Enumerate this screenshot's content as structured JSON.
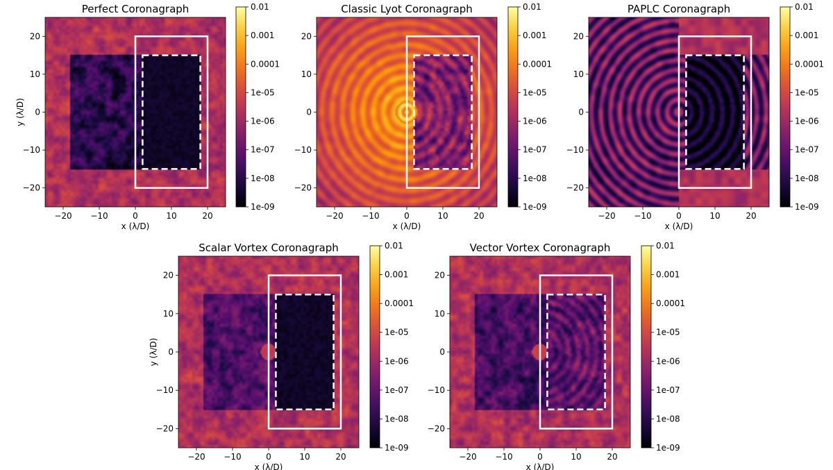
{
  "chart_data": [
    {
      "type": "heatmap",
      "title": "Perfect Coronagraph",
      "xlabel": "x (λ/D)",
      "ylabel": "y (λ/D)",
      "xlim": [
        -25,
        25
      ],
      "ylim": [
        -25,
        25
      ],
      "xticks": [
        -20,
        -10,
        0,
        10,
        20
      ],
      "yticks": [
        -20,
        -10,
        0,
        10,
        20
      ],
      "colorbar": {
        "scale": "log",
        "range": [
          1e-09,
          0.01
        ],
        "colormap": "inferno",
        "ticks": [
          "0.01",
          "0.001",
          "0.0001",
          "1e-05",
          "1e-06",
          "1e-07",
          "1e-08",
          "1e-09"
        ]
      },
      "dark_hole": {
        "x": [
          -18,
          18
        ],
        "y": [
          -15,
          15
        ]
      },
      "speckle_level": 1e-08,
      "halo_level": 2e-06,
      "inner_hole_level": 3e-09,
      "solid_box": {
        "x": [
          0,
          20
        ],
        "y": [
          -20,
          20
        ]
      },
      "dashed_box": {
        "x": [
          2,
          18
        ],
        "y": [
          -15,
          15
        ]
      }
    },
    {
      "type": "heatmap",
      "title": "Classic Lyot Coronagraph",
      "xlabel": "x (λ/D)",
      "ylabel": "y (λ/D)",
      "xlim": [
        -25,
        25
      ],
      "ylim": [
        -25,
        25
      ],
      "xticks": [
        -20,
        -10,
        0,
        10,
        20
      ],
      "yticks": [
        -20,
        -10,
        0,
        10,
        20
      ],
      "colorbar": {
        "scale": "log",
        "range": [
          1e-09,
          0.01
        ],
        "colormap": "inferno",
        "ticks": [
          "0.01",
          "0.001",
          "0.0001",
          "1e-05",
          "1e-06",
          "1e-07",
          "1e-08",
          "1e-09"
        ]
      },
      "dark_hole": {
        "x": [
          2,
          18
        ],
        "y": [
          -15,
          15
        ]
      },
      "speckle_level": 3e-07,
      "halo_level": 5e-06,
      "peak_level": 0.0005,
      "solid_box": {
        "x": [
          0,
          20
        ],
        "y": [
          -20,
          20
        ]
      },
      "dashed_box": {
        "x": [
          2,
          18
        ],
        "y": [
          -15,
          15
        ]
      }
    },
    {
      "type": "heatmap",
      "title": "PAPLC Coronagraph",
      "xlabel": "x (λ/D)",
      "ylabel": "y (λ/D)",
      "xlim": [
        -25,
        25
      ],
      "ylim": [
        -25,
        25
      ],
      "xticks": [
        -20,
        -10,
        0,
        10,
        20
      ],
      "yticks": [
        -20,
        -10,
        0,
        10,
        20
      ],
      "colorbar": {
        "scale": "log",
        "range": [
          1e-09,
          0.01
        ],
        "colormap": "inferno",
        "ticks": [
          "0.01",
          "0.001",
          "0.0001",
          "1e-05",
          "1e-06",
          "1e-07",
          "1e-08",
          "1e-09"
        ]
      },
      "dark_hole": {
        "x": [
          2,
          18
        ],
        "y": [
          -15,
          15
        ]
      },
      "speckle_level": 1e-07,
      "halo_level": 2e-06,
      "inner_hole_level": 3e-09,
      "solid_box": {
        "x": [
          0,
          20
        ],
        "y": [
          -20,
          20
        ]
      },
      "dashed_box": {
        "x": [
          2,
          18
        ],
        "y": [
          -15,
          15
        ]
      }
    },
    {
      "type": "heatmap",
      "title": "Scalar Vortex Coronagraph",
      "xlabel": "x (λ/D)",
      "ylabel": "y (λ/D)",
      "xlim": [
        -25,
        25
      ],
      "ylim": [
        -25,
        25
      ],
      "xticks": [
        -20,
        -10,
        0,
        10,
        20
      ],
      "yticks": [
        -20,
        -10,
        0,
        10,
        20
      ],
      "colorbar": {
        "scale": "log",
        "range": [
          1e-09,
          0.01
        ],
        "colormap": "inferno",
        "ticks": [
          "0.01",
          "0.001",
          "0.0001",
          "1e-05",
          "1e-06",
          "1e-07",
          "1e-08",
          "1e-09"
        ]
      },
      "dark_hole": {
        "x": [
          -18,
          18
        ],
        "y": [
          -15,
          15
        ]
      },
      "speckle_level": 5e-08,
      "halo_level": 2e-06,
      "inner_hole_level": 3e-09,
      "solid_box": {
        "x": [
          0,
          20
        ],
        "y": [
          -20,
          20
        ]
      },
      "dashed_box": {
        "x": [
          2,
          18
        ],
        "y": [
          -15,
          15
        ]
      }
    },
    {
      "type": "heatmap",
      "title": "Vector Vortex Coronagraph",
      "xlabel": "x (λ/D)",
      "ylabel": "y (λ/D)",
      "xlim": [
        -25,
        25
      ],
      "ylim": [
        -25,
        25
      ],
      "xticks": [
        -20,
        -10,
        0,
        10,
        20
      ],
      "yticks": [
        -20,
        -10,
        0,
        10,
        20
      ],
      "colorbar": {
        "scale": "log",
        "range": [
          1e-09,
          0.01
        ],
        "colormap": "inferno",
        "ticks": [
          "0.01",
          "0.001",
          "0.0001",
          "1e-05",
          "1e-06",
          "1e-07",
          "1e-08",
          "1e-09"
        ]
      },
      "dark_hole": {
        "x": [
          -18,
          18
        ],
        "y": [
          -15,
          15
        ]
      },
      "speckle_level": 3e-08,
      "halo_level": 2e-06,
      "solid_box": {
        "x": [
          0,
          20
        ],
        "y": [
          -20,
          20
        ]
      },
      "dashed_box": {
        "x": [
          2,
          18
        ],
        "y": [
          -15,
          15
        ]
      }
    }
  ]
}
